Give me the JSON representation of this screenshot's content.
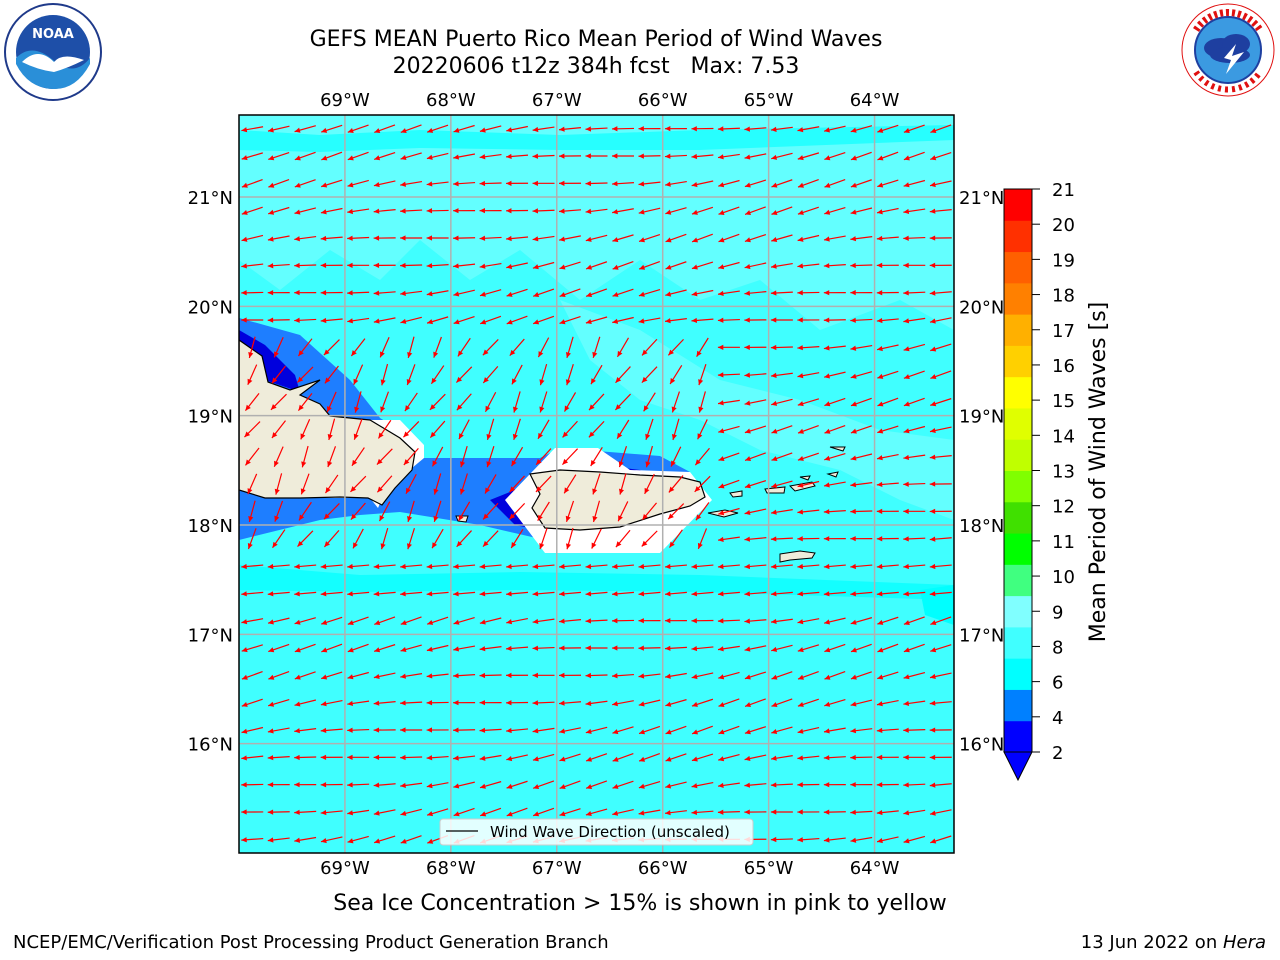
{
  "header": {
    "title_line1": "GEFS MEAN Puerto Rico Mean Period of Wind Waves",
    "title_line2": "20220606 t12z 384h fcst   Max: 7.53"
  },
  "logos": {
    "left": {
      "name": "noaa-logo-icon",
      "text": "NOAA",
      "ring_text": "NATIONAL OCEANIC AND ATMOSPHERIC ADMINISTRATION · U.S. DEPARTMENT OF COMMERCE"
    },
    "right": {
      "name": "nws-logo-icon",
      "ring_text": "NATIONAL WEATHER SERVICE"
    }
  },
  "map": {
    "lon_ticks": [
      "69°W",
      "68°W",
      "67°W",
      "66°W",
      "65°W",
      "64°W"
    ],
    "lat_ticks": [
      "21°N",
      "20°N",
      "19°N",
      "18°N",
      "17°N",
      "16°N"
    ],
    "lon_values": [
      -69,
      -68,
      -67,
      -66,
      -65,
      -64
    ],
    "lat_values": [
      21,
      20,
      19,
      18,
      17,
      16
    ],
    "extent": {
      "lon_min": -70.0,
      "lon_max": -63.25,
      "lat_min": 15.0,
      "lat_max": 21.75
    },
    "legend_label": "Wind Wave Direction (unscaled)",
    "vector_color": "#ff0000",
    "vector_field": {
      "spacing_deg": 0.25,
      "dominant_direction": "toward west-northwest"
    },
    "land_color": "#efecda",
    "coast_color": "#000000",
    "grid_color": "#b0b0b0"
  },
  "colorbar": {
    "label": "Mean Period of Wind Waves [s]",
    "tick_labels": [
      "21",
      "20",
      "19",
      "18",
      "17",
      "16",
      "15",
      "14",
      "13",
      "12",
      "11",
      "10",
      "9",
      "8",
      "6",
      "4",
      "2"
    ],
    "colors_bottom_to_top": [
      "#0000ff",
      "#0080ff",
      "#00ffff",
      "#40ffff",
      "#80ffff",
      "#40ff80",
      "#00ff00",
      "#40e000",
      "#80ff00",
      "#c0ff00",
      "#e0ff00",
      "#ffff00",
      "#ffd000",
      "#ffb000",
      "#ff8000",
      "#ff6000",
      "#ff3000",
      "#ff0000"
    ],
    "underflow_color": "#0000ff"
  },
  "field_colors": {
    "very_low": "#0000dd",
    "low": "#1e7eff",
    "mid": "#00ffff",
    "high": "#4dffff",
    "higher": "#80ffff"
  },
  "caption": "Sea Ice Concentration > 15% is shown in pink to yellow",
  "footer": {
    "left": "NCEP/EMC/Verification Post Processing Product Generation Branch",
    "right_prefix": "13 Jun 2022 on ",
    "right_machine": "Hera"
  }
}
